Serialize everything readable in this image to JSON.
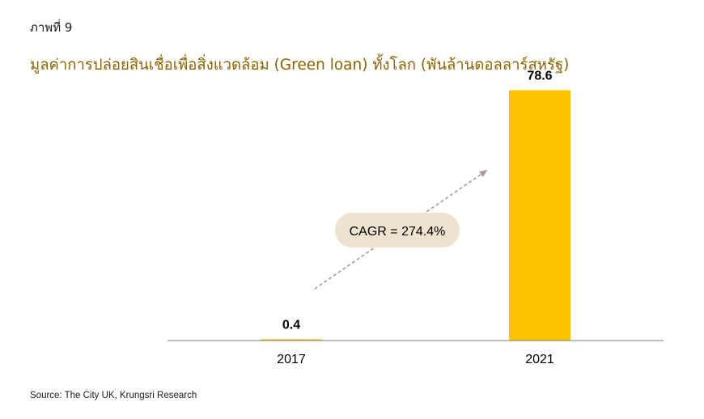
{
  "figure_label": "ภาพที่ 9",
  "source": "Source: The City UK, Krungsri Research",
  "chart_data": {
    "type": "bar",
    "title": "มูลค่าการปล่อยสินเชื่อเพื่อสิ่งแวดล้อม (Green loan) ทั้งโลก (พันล้านดอลลาร์สหรัฐ)",
    "categories": [
      "2017",
      "2021"
    ],
    "values": [
      0.4,
      78.6
    ],
    "value_labels": [
      "0.4",
      "78.6"
    ],
    "xlabel": "",
    "ylabel": "",
    "ylim": [
      0,
      80
    ],
    "grid": false,
    "legend": "none",
    "bar_color": "#FDC300",
    "annotation": {
      "text": "CAGR = 274.4%",
      "box_color": "#EEE3CE",
      "arrow_color": "#A89A91"
    }
  }
}
